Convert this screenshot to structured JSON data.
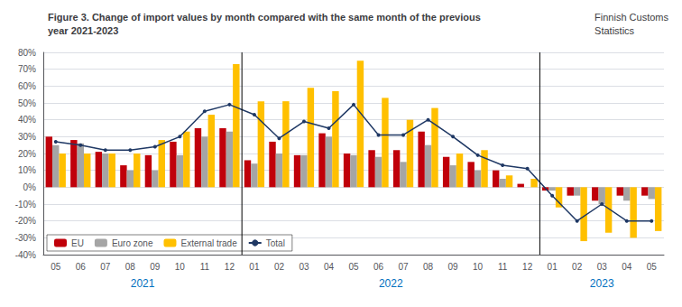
{
  "chart_data": {
    "type": "bar",
    "title": "Figure 3. Change of import values by month compared with the same month of the previous\nyear 2021-2023",
    "subtitle": "Finnish Customs\nStatistics",
    "categories": [
      "05",
      "06",
      "07",
      "08",
      "09",
      "10",
      "11",
      "12",
      "01",
      "02",
      "03",
      "04",
      "05",
      "06",
      "07",
      "08",
      "09",
      "10",
      "11",
      "12",
      "01",
      "02",
      "03",
      "04",
      "05"
    ],
    "annotations": [
      "2021",
      "2022",
      "2023"
    ],
    "series": [
      {
        "name": "EU",
        "type": "bar",
        "color": "#c0000a",
        "values": [
          30,
          28,
          21,
          13,
          19,
          27,
          35,
          35,
          16,
          27,
          19,
          32,
          20,
          22,
          22,
          33,
          18,
          15,
          10,
          2,
          -2,
          -5,
          -8,
          -5,
          -5
        ]
      },
      {
        "name": "Euro zone",
        "type": "bar",
        "color": "#a5a5a5",
        "values": [
          25,
          26,
          20,
          10,
          10,
          19,
          30,
          33,
          14,
          20,
          19,
          30,
          19,
          18,
          15,
          25,
          13,
          10,
          5,
          0,
          -2,
          -5,
          -10,
          -8,
          -7
        ]
      },
      {
        "name": "External trade",
        "type": "bar",
        "color": "#ffc000",
        "values": [
          20,
          20,
          20,
          20,
          28,
          33,
          43,
          73,
          51,
          51,
          59,
          57,
          75,
          53,
          40,
          47,
          20,
          22,
          7,
          5,
          -12,
          -32,
          -27,
          -30,
          -26
        ]
      },
      {
        "name": "Total",
        "type": "line",
        "color": "#1f3864",
        "marker": "circle",
        "values": [
          27,
          25,
          22,
          22,
          24,
          30,
          45,
          49,
          43,
          29,
          39,
          35,
          49,
          31,
          31,
          40,
          30,
          19,
          13,
          11,
          -5,
          -20,
          -10,
          -20,
          -20
        ]
      }
    ],
    "ylim": [
      -40,
      80
    ],
    "yticks": [
      {
        "value": -40,
        "label": "-40%"
      },
      {
        "value": -30,
        "label": "-30%"
      },
      {
        "value": -20,
        "label": "-20%"
      },
      {
        "value": -10,
        "label": "-10%"
      },
      {
        "value": 0,
        "label": "0%"
      },
      {
        "value": 10,
        "label": "10%"
      },
      {
        "value": 20,
        "label": "20%"
      },
      {
        "value": 30,
        "label": "30%"
      },
      {
        "value": 40,
        "label": "40%"
      },
      {
        "value": 50,
        "label": "50%"
      },
      {
        "value": 60,
        "label": "60%"
      },
      {
        "value": 70,
        "label": "70%"
      },
      {
        "value": 80,
        "label": "80%"
      }
    ],
    "grid": true,
    "legend": "lower left"
  }
}
